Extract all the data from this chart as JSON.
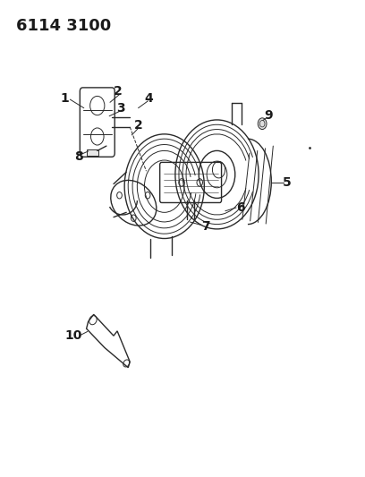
{
  "title": "6114 3100",
  "background_color": "#ffffff",
  "line_color": "#2a2a2a",
  "label_color": "#1a1a1a",
  "title_fontsize": 13,
  "label_fontsize": 10,
  "fig_width": 4.08,
  "fig_height": 5.33
}
